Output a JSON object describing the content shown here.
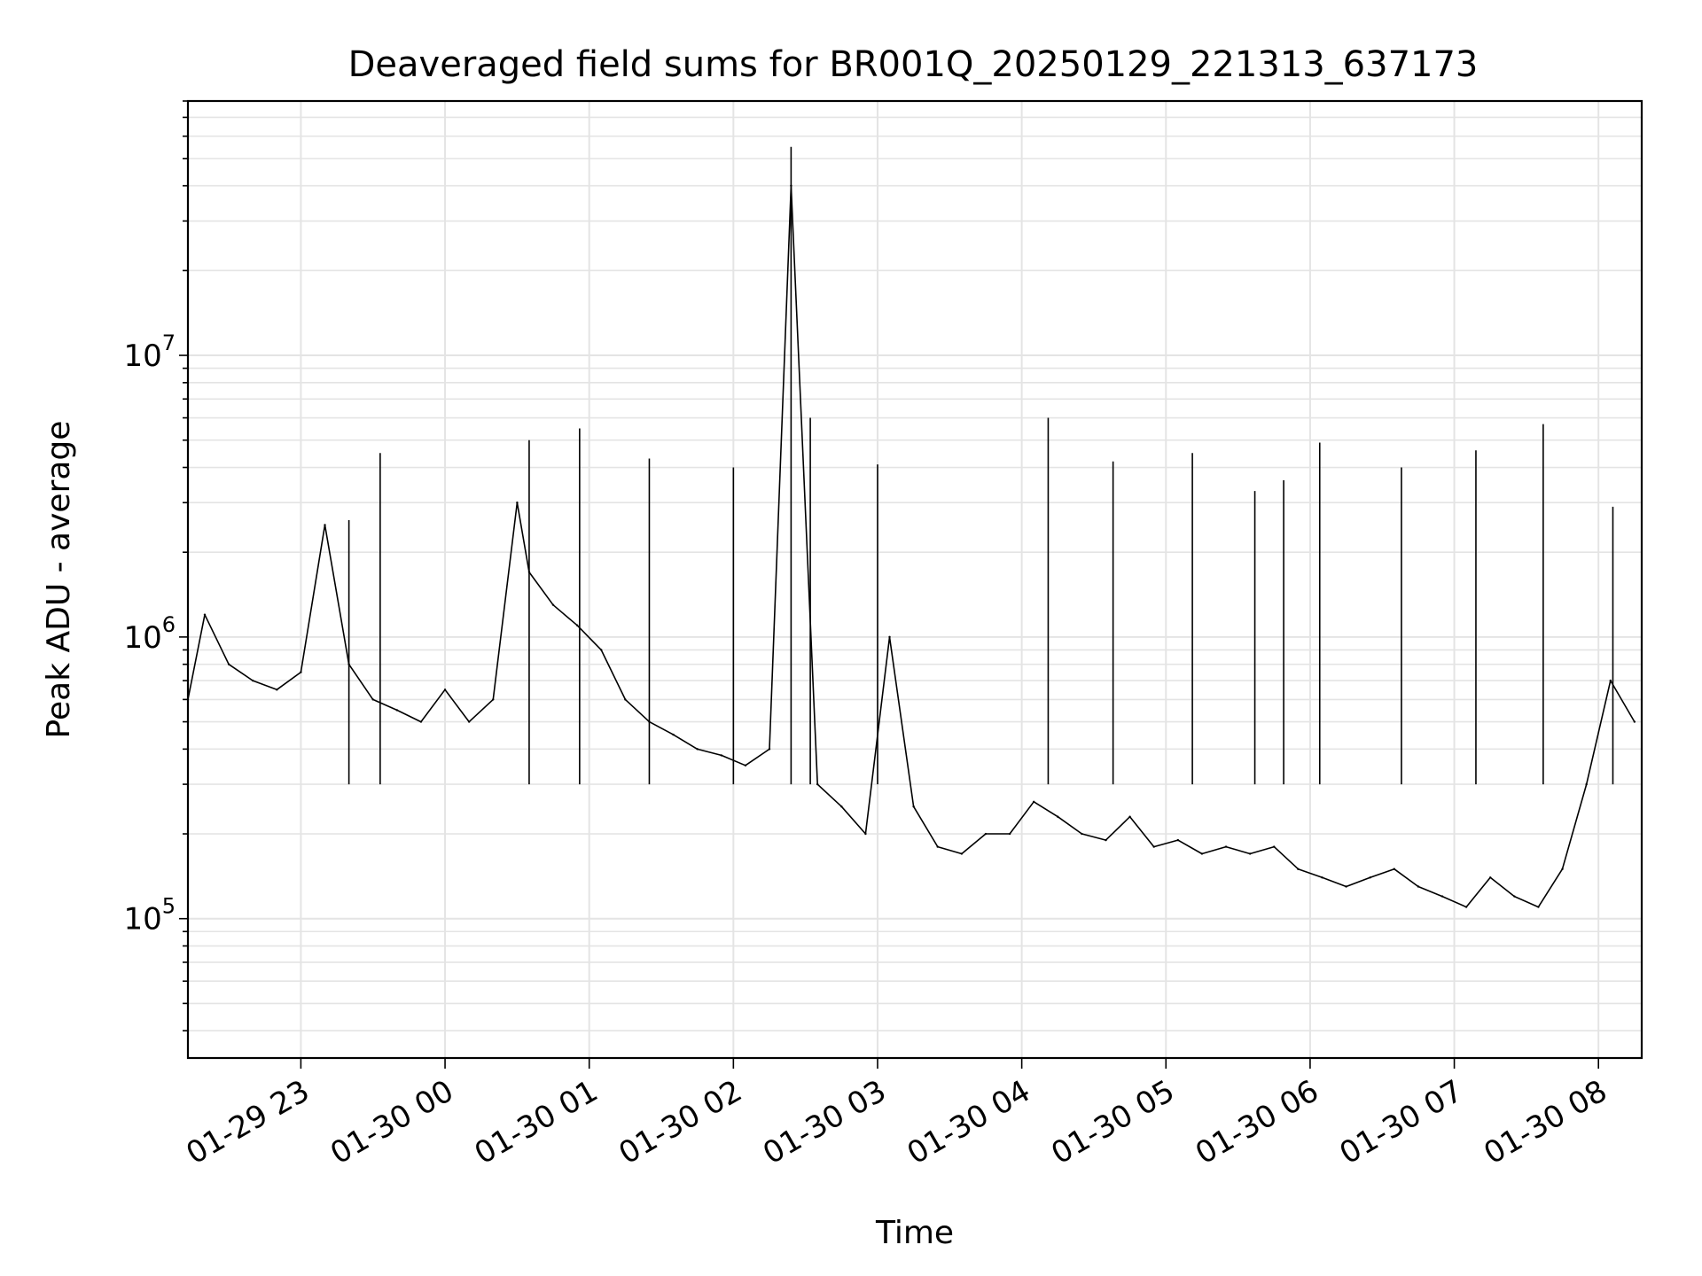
{
  "chart_data": {
    "type": "line",
    "title": "Deaveraged field sums for BR001Q_20250129_221313_637173",
    "xlabel": "Time",
    "ylabel": "Peak ADU - average",
    "yscale": "log",
    "grid": true,
    "line_color": "#000000",
    "xlim": [
      "2025-01-29 22:13",
      "2025-01-30 08:18"
    ],
    "ylim": [
      32000,
      80000000
    ],
    "x_ticks": [
      {
        "label": "01-29 23",
        "value": "2025-01-29 23:00"
      },
      {
        "label": "01-30 00",
        "value": "2025-01-30 00:00"
      },
      {
        "label": "01-30 01",
        "value": "2025-01-30 01:00"
      },
      {
        "label": "01-30 02",
        "value": "2025-01-30 02:00"
      },
      {
        "label": "01-30 03",
        "value": "2025-01-30 03:00"
      },
      {
        "label": "01-30 04",
        "value": "2025-01-30 04:00"
      },
      {
        "label": "01-30 05",
        "value": "2025-01-30 05:00"
      },
      {
        "label": "01-30 06",
        "value": "2025-01-30 06:00"
      },
      {
        "label": "01-30 07",
        "value": "2025-01-30 07:00"
      },
      {
        "label": "01-30 08",
        "value": "2025-01-30 08:00"
      }
    ],
    "y_ticks": [
      {
        "base": "10",
        "exp": "5",
        "value": 100000
      },
      {
        "base": "10",
        "exp": "6",
        "value": 1000000
      },
      {
        "base": "10",
        "exp": "7",
        "value": 10000000
      }
    ],
    "series": [
      {
        "x": [
          "2025-01-29 22:13",
          "2025-01-29 22:20",
          "2025-01-29 22:30",
          "2025-01-29 22:40",
          "2025-01-29 22:50",
          "2025-01-29 23:00",
          "2025-01-29 23:10",
          "2025-01-29 23:20",
          "2025-01-29 23:30",
          "2025-01-29 23:40",
          "2025-01-29 23:50",
          "2025-01-30 00:00",
          "2025-01-30 00:10",
          "2025-01-30 00:20",
          "2025-01-30 00:30",
          "2025-01-30 00:35",
          "2025-01-30 00:45",
          "2025-01-30 00:55",
          "2025-01-30 01:05",
          "2025-01-30 01:15",
          "2025-01-30 01:25",
          "2025-01-30 01:35",
          "2025-01-30 01:45",
          "2025-01-30 01:55",
          "2025-01-30 02:05",
          "2025-01-30 02:15",
          "2025-01-30 02:24",
          "2025-01-30 02:35",
          "2025-01-30 02:45",
          "2025-01-30 02:55",
          "2025-01-30 03:05",
          "2025-01-30 03:15",
          "2025-01-30 03:25",
          "2025-01-30 03:35",
          "2025-01-30 03:45",
          "2025-01-30 03:55",
          "2025-01-30 04:05",
          "2025-01-30 04:15",
          "2025-01-30 04:25",
          "2025-01-30 04:35",
          "2025-01-30 04:45",
          "2025-01-30 04:55",
          "2025-01-30 05:05",
          "2025-01-30 05:15",
          "2025-01-30 05:25",
          "2025-01-30 05:35",
          "2025-01-30 05:45",
          "2025-01-30 05:55",
          "2025-01-30 06:05",
          "2025-01-30 06:15",
          "2025-01-30 06:25",
          "2025-01-30 06:35",
          "2025-01-30 06:45",
          "2025-01-30 06:55",
          "2025-01-30 07:05",
          "2025-01-30 07:15",
          "2025-01-30 07:25",
          "2025-01-30 07:35",
          "2025-01-30 07:45",
          "2025-01-30 07:55",
          "2025-01-30 08:05",
          "2025-01-30 08:15"
        ],
        "y": [
          600000,
          1200000,
          800000,
          700000,
          650000,
          750000,
          2500000,
          800000,
          600000,
          550000,
          500000,
          650000,
          500000,
          600000,
          3000000,
          1700000,
          1300000,
          1100000,
          900000,
          600000,
          500000,
          450000,
          400000,
          380000,
          350000,
          400000,
          40000000,
          300000,
          250000,
          200000,
          1000000,
          250000,
          180000,
          170000,
          200000,
          200000,
          260000,
          230000,
          200000,
          190000,
          230000,
          180000,
          190000,
          170000,
          180000,
          170000,
          180000,
          150000,
          140000,
          130000,
          140000,
          150000,
          130000,
          120000,
          110000,
          140000,
          120000,
          110000,
          150000,
          300000,
          700000,
          500000
        ],
        "peaks": [
          {
            "x": "2025-01-29 23:20",
            "y": 2600000
          },
          {
            "x": "2025-01-29 23:33",
            "y": 4500000
          },
          {
            "x": "2025-01-30 00:35",
            "y": 5000000
          },
          {
            "x": "2025-01-30 00:56",
            "y": 5500000
          },
          {
            "x": "2025-01-30 01:25",
            "y": 4300000
          },
          {
            "x": "2025-01-30 02:00",
            "y": 4000000
          },
          {
            "x": "2025-01-30 02:24",
            "y": 55000000
          },
          {
            "x": "2025-01-30 02:32",
            "y": 6000000
          },
          {
            "x": "2025-01-30 03:00",
            "y": 4100000
          },
          {
            "x": "2025-01-30 04:11",
            "y": 6000000
          },
          {
            "x": "2025-01-30 04:38",
            "y": 4200000
          },
          {
            "x": "2025-01-30 05:11",
            "y": 4500000
          },
          {
            "x": "2025-01-30 05:37",
            "y": 3300000
          },
          {
            "x": "2025-01-30 05:49",
            "y": 3600000
          },
          {
            "x": "2025-01-30 06:04",
            "y": 4900000
          },
          {
            "x": "2025-01-30 06:38",
            "y": 4000000
          },
          {
            "x": "2025-01-30 07:09",
            "y": 4600000
          },
          {
            "x": "2025-01-30 07:37",
            "y": 5700000
          },
          {
            "x": "2025-01-30 08:06",
            "y": 2900000
          }
        ]
      }
    ]
  }
}
